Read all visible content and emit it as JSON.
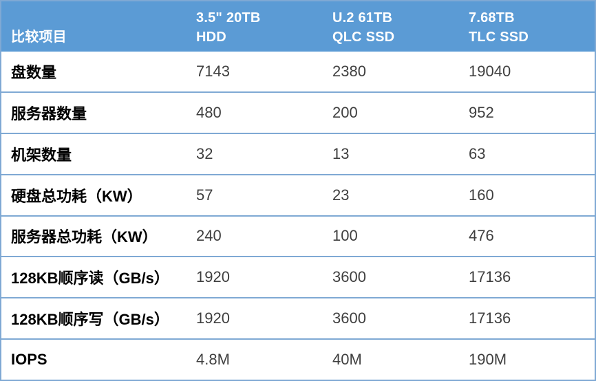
{
  "colors": {
    "header_bg": "#5b9bd5",
    "header_text": "#ffffff",
    "border_blue": "#7fa9d4",
    "row_bg": "#ffffff",
    "label_text": "#000000",
    "value_text": "#3f3f3f"
  },
  "chart_data": {
    "type": "table",
    "title": "",
    "columns": [
      {
        "label": "比较项目",
        "display": "比较项目"
      },
      {
        "label": "3.5\" 20TB HDD",
        "display": "3.5\" 20TB\nHDD"
      },
      {
        "label": "U.2 61TB QLC SSD",
        "display": "U.2 61TB\nQLC SSD"
      },
      {
        "label": "7.68TB TLC SSD",
        "display": "7.68TB\nTLC SSD"
      }
    ],
    "rows": [
      {
        "label": "盘数量",
        "values": [
          "7143",
          "2380",
          "19040"
        ]
      },
      {
        "label": "服务器数量",
        "values": [
          "480",
          "200",
          "952"
        ]
      },
      {
        "label": "机架数量",
        "values": [
          "32",
          "13",
          "63"
        ]
      },
      {
        "label": "硬盘总功耗（KW）",
        "values": [
          "57",
          "23",
          "160"
        ]
      },
      {
        "label": "服务器总功耗（KW）",
        "values": [
          "240",
          "100",
          "476"
        ]
      },
      {
        "label": "128KB顺序读（GB/s）",
        "values": [
          "1920",
          "3600",
          "17136"
        ]
      },
      {
        "label": "128KB顺序写（GB/s）",
        "values": [
          "1920",
          "3600",
          "17136"
        ]
      },
      {
        "label": "IOPS",
        "values": [
          "4.8M",
          "40M",
          "190M"
        ]
      }
    ]
  }
}
